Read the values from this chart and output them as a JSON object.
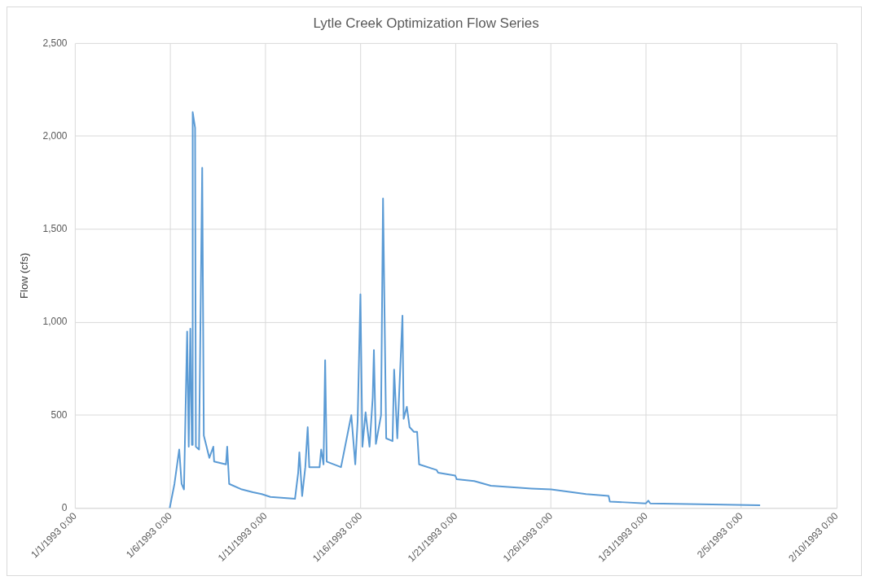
{
  "chart_data": {
    "type": "line",
    "title": "Lytle Creek Optimization Flow Series",
    "ylabel": "Flow (cfs)",
    "x": [
      "1993-01-05T23:00",
      "1993-01-06T05:00",
      "1993-01-06T11:00",
      "1993-01-06T14:00",
      "1993-01-06T17:00",
      "1993-01-06T21:00",
      "1993-01-06T23:00",
      "1993-01-07T01:00",
      "1993-01-07T03:00",
      "1993-01-07T04:00",
      "1993-01-07T07:00",
      "1993-01-07T08:00",
      "1993-01-07T12:00",
      "1993-01-07T16:00",
      "1993-01-07T18:00",
      "1993-01-08T01:00",
      "1993-01-08T06:00",
      "1993-01-08T07:00",
      "1993-01-08T22:00",
      "1993-01-08T23:30",
      "1993-01-09T02:00",
      "1993-01-09T18:00",
      "1993-01-10T08:00",
      "1993-01-10T19:00",
      "1993-01-11T06:00",
      "1993-01-12T13:00",
      "1993-01-12T17:00",
      "1993-01-12T18:30",
      "1993-01-12T22:00",
      "1993-01-13T02:00",
      "1993-01-13T05:00",
      "1993-01-13T07:00",
      "1993-01-13T20:00",
      "1993-01-13T22:00",
      "1993-01-14T01:00",
      "1993-01-14T03:00",
      "1993-01-14T05:00",
      "1993-01-14T23:00",
      "1993-01-15T12:00",
      "1993-01-15T17:00",
      "1993-01-15T20:00",
      "1993-01-15T23:30",
      "1993-01-16T02:00",
      "1993-01-16T06:00",
      "1993-01-16T11:00",
      "1993-01-16T15:00",
      "1993-01-16T16:30",
      "1993-01-16T19:00",
      "1993-01-17T01:30",
      "1993-01-17T04:00",
      "1993-01-17T08:00",
      "1993-01-17T16:00",
      "1993-01-17T18:00",
      "1993-01-17T22:00",
      "1993-01-18T04:30",
      "1993-01-18T06:00",
      "1993-01-18T10:00",
      "1993-01-18T13:30",
      "1993-01-18T19:00",
      "1993-01-18T23:00",
      "1993-01-19T01:30",
      "1993-01-19T23:30",
      "1993-01-20T01:30",
      "1993-01-20T23:00",
      "1993-01-21T01:00",
      "1993-01-21T23:00",
      "1993-01-22T20:00",
      "1993-01-24T23:00",
      "1993-01-26T00:00",
      "1993-01-27T20:00",
      "1993-01-29T00:30",
      "1993-01-29T02:00",
      "1993-01-30T23:30",
      "1993-01-31T02:30",
      "1993-01-31T05:00",
      "1993-02-02T20:00",
      "1993-02-05T23:30"
    ],
    "series": [
      {
        "color": "#5b9bd5",
        "values": [
          0,
          130,
          315,
          130,
          100,
          950,
          330,
          965,
          340,
          2130,
          2045,
          330,
          315,
          1830,
          390,
          270,
          330,
          250,
          235,
          330,
          130,
          100,
          85,
          75,
          60,
          50,
          190,
          300,
          65,
          220,
          435,
          220,
          220,
          315,
          235,
          795,
          250,
          220,
          500,
          235,
          470,
          1150,
          330,
          515,
          330,
          595,
          850,
          345,
          500,
          1665,
          375,
          360,
          745,
          375,
          1035,
          480,
          545,
          435,
          410,
          410,
          235,
          205,
          190,
          175,
          155,
          145,
          120,
          105,
          100,
          75,
          65,
          35,
          25,
          40,
          25,
          20,
          15
        ]
      }
    ],
    "xlim": [
      "1993-01-01T00:00",
      "1993-02-10T00:00"
    ],
    "xticks": [
      {
        "value": "1993-01-01T00:00",
        "label": "1/1/1993 0:00"
      },
      {
        "value": "1993-01-06T00:00",
        "label": "1/6/1993 0:00"
      },
      {
        "value": "1993-01-11T00:00",
        "label": "1/11/1993 0:00"
      },
      {
        "value": "1993-01-16T00:00",
        "label": "1/16/1993 0:00"
      },
      {
        "value": "1993-01-21T00:00",
        "label": "1/21/1993 0:00"
      },
      {
        "value": "1993-01-26T00:00",
        "label": "1/26/1993 0:00"
      },
      {
        "value": "1993-01-31T00:00",
        "label": "1/31/1993 0:00"
      },
      {
        "value": "1993-02-05T00:00",
        "label": "2/5/1993 0:00"
      },
      {
        "value": "1993-02-10T00:00",
        "label": "2/10/1993 0:00"
      }
    ],
    "ylim": [
      0,
      2500
    ],
    "yticks": [
      {
        "value": 0,
        "label": "0"
      },
      {
        "value": 500,
        "label": "500"
      },
      {
        "value": 1000,
        "label": "1,000"
      },
      {
        "value": 1500,
        "label": "1,500"
      },
      {
        "value": 2000,
        "label": "2,000"
      },
      {
        "value": 2500,
        "label": "2,500"
      }
    ],
    "grid": true,
    "legend": false,
    "marker": "none",
    "line_style": "solid"
  }
}
